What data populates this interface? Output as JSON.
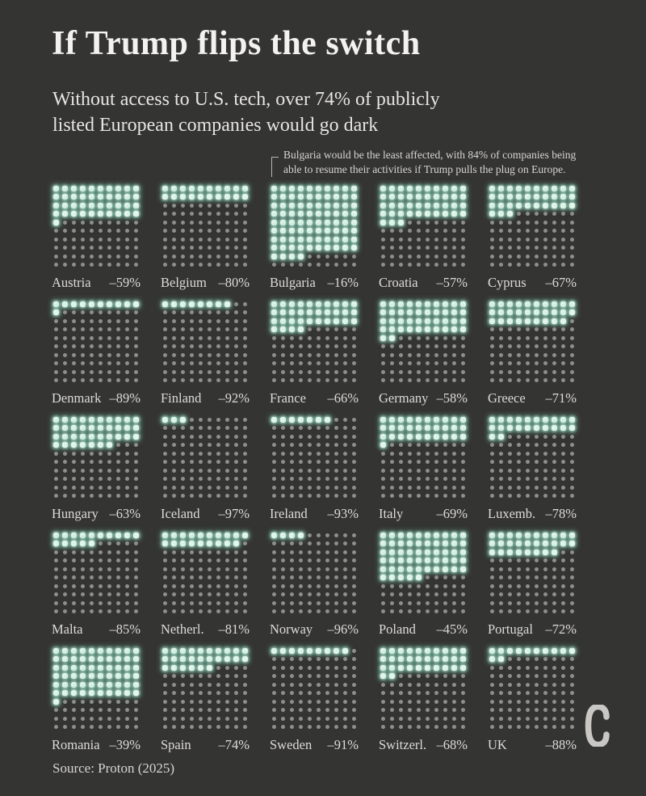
{
  "header": {
    "title": "If Trump flips the switch",
    "subtitle": "Without access to U.S. tech, over 74% of publicly\nlisted European companies would go dark"
  },
  "annotation": {
    "text": "Bulgaria would be the least affected, with 84% of companies being\nable to resume their activities if Trump pulls the plug on Europe."
  },
  "footer": {
    "source": "Source: Proton (2025)",
    "logo_icon": "c-mark-logo"
  },
  "colors": {
    "background": "#343432",
    "lit_dot": "#e3f6ec",
    "lit_glow": "#76beA8",
    "dim_dot": "#8e8e8c",
    "title_text": "#f4f2ee"
  },
  "chart_data": {
    "type": "waffle",
    "layout": "5x5 grid of countries, each a 10x10 dot waffle, 1 dot = 1% of companies, filled row-major from top-left",
    "lit_meaning": "share of companies able to resume activities without U.S. tech",
    "dim_meaning": "share of publicly listed companies that would go dark",
    "countries": [
      {
        "name": "Austria",
        "change_label": "–59%",
        "value_pct": -59,
        "lit_dots": 41
      },
      {
        "name": "Belgium",
        "change_label": "–80%",
        "value_pct": -80,
        "lit_dots": 20
      },
      {
        "name": "Bulgaria",
        "change_label": "–16%",
        "value_pct": -16,
        "lit_dots": 84
      },
      {
        "name": "Croatia",
        "change_label": "–57%",
        "value_pct": -57,
        "lit_dots": 43
      },
      {
        "name": "Cyprus",
        "change_label": "–67%",
        "value_pct": -67,
        "lit_dots": 33
      },
      {
        "name": "Denmark",
        "change_label": "–89%",
        "value_pct": -89,
        "lit_dots": 11
      },
      {
        "name": "Finland",
        "change_label": "–92%",
        "value_pct": -92,
        "lit_dots": 8
      },
      {
        "name": "France",
        "change_label": "–66%",
        "value_pct": -66,
        "lit_dots": 34
      },
      {
        "name": "Germany",
        "change_label": "–58%",
        "value_pct": -58,
        "lit_dots": 42
      },
      {
        "name": "Greece",
        "change_label": "–71%",
        "value_pct": -71,
        "lit_dots": 29
      },
      {
        "name": "Hungary",
        "change_label": "–63%",
        "value_pct": -63,
        "lit_dots": 37
      },
      {
        "name": "Iceland",
        "change_label": "–97%",
        "value_pct": -97,
        "lit_dots": 3
      },
      {
        "name": "Ireland",
        "change_label": "–93%",
        "value_pct": -93,
        "lit_dots": 7
      },
      {
        "name": "Italy",
        "change_label": "–69%",
        "value_pct": -69,
        "lit_dots": 31
      },
      {
        "name": "Luxemb.",
        "change_label": "–78%",
        "value_pct": -78,
        "lit_dots": 22
      },
      {
        "name": "Malta",
        "change_label": "–85%",
        "value_pct": -85,
        "lit_dots": 15
      },
      {
        "name": "Netherl.",
        "change_label": "–81%",
        "value_pct": -81,
        "lit_dots": 19
      },
      {
        "name": "Norway",
        "change_label": "–96%",
        "value_pct": -96,
        "lit_dots": 4
      },
      {
        "name": "Poland",
        "change_label": "–45%",
        "value_pct": -45,
        "lit_dots": 55
      },
      {
        "name": "Portugal",
        "change_label": "–72%",
        "value_pct": -72,
        "lit_dots": 28
      },
      {
        "name": "Romania",
        "change_label": "–39%",
        "value_pct": -39,
        "lit_dots": 61
      },
      {
        "name": "Spain",
        "change_label": "–74%",
        "value_pct": -74,
        "lit_dots": 26
      },
      {
        "name": "Sweden",
        "change_label": "–91%",
        "value_pct": -91,
        "lit_dots": 9
      },
      {
        "name": "Switzerl.",
        "change_label": "–68%",
        "value_pct": -68,
        "lit_dots": 32
      },
      {
        "name": "UK",
        "change_label": "–88%",
        "value_pct": -88,
        "lit_dots": 12
      }
    ]
  }
}
